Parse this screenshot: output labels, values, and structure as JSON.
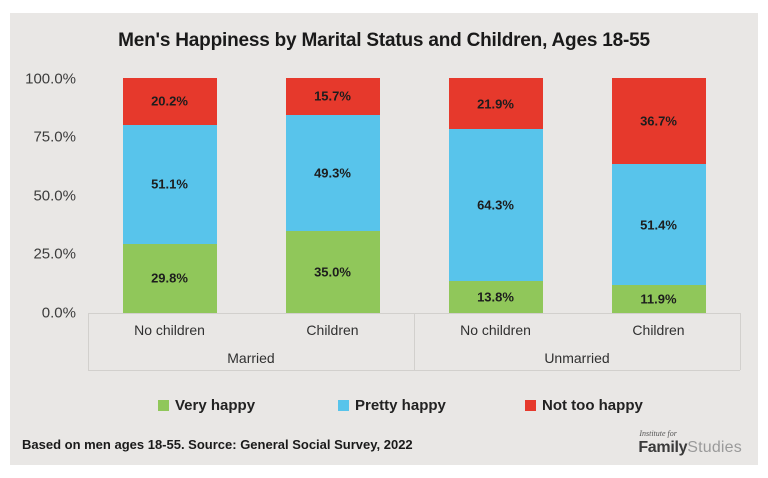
{
  "title": "Men's Happiness by Marital Status and Children, Ages 18-55",
  "chart_data": {
    "type": "bar",
    "stacked": true,
    "percent_stacked": true,
    "title": "Men's Happiness by Marital Status and Children, Ages 18-55",
    "ylim": [
      0,
      100
    ],
    "ytick_labels": [
      "100.0%",
      "75.0%",
      "50.0%",
      "25.0%",
      "0.0%"
    ],
    "grid": false,
    "legend_position": "bottom",
    "series": [
      {
        "name": "Very happy",
        "color": "#90c75a"
      },
      {
        "name": "Pretty happy",
        "color": "#58c4eb"
      },
      {
        "name": "Not too happy",
        "color": "#e6392c"
      }
    ],
    "groups": [
      {
        "label": "Married",
        "categories": [
          "No children",
          "Children"
        ],
        "values": [
          [
            29.8,
            51.1,
            20.2
          ],
          [
            35.0,
            49.3,
            15.7
          ]
        ]
      },
      {
        "label": "Unmarried",
        "categories": [
          "No children",
          "Children"
        ],
        "values": [
          [
            13.8,
            64.3,
            21.9
          ],
          [
            11.9,
            51.4,
            36.7
          ]
        ]
      }
    ],
    "value_label_format": "one_decimal_percent"
  },
  "footer": {
    "note": "Based on men ages 18-55. Source: General Social Survey, 2022"
  },
  "logo": {
    "tagline": "Institute for",
    "brand_bold": "Family",
    "brand_light": "Studies"
  }
}
